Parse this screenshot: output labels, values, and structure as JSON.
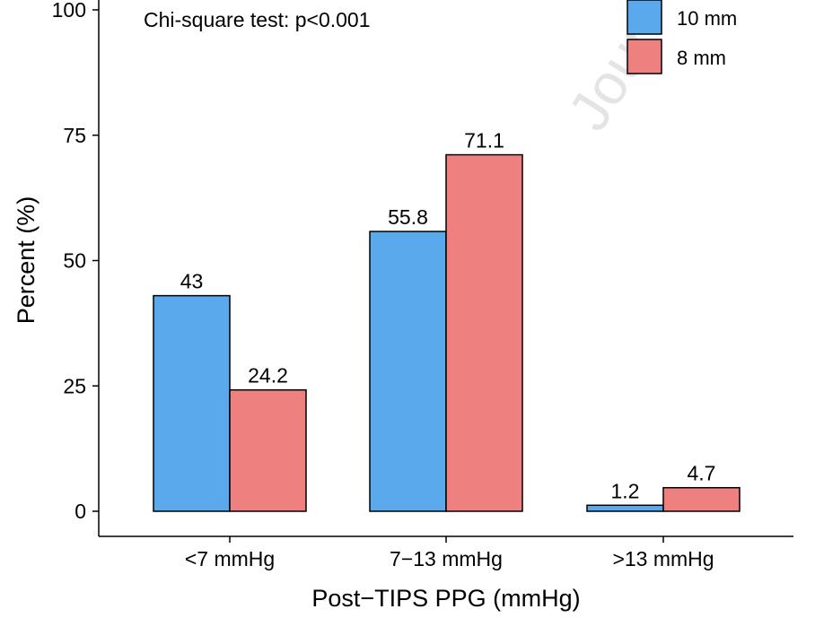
{
  "chart_data": {
    "type": "bar",
    "title": "",
    "annotation": "Chi-square test: p<0.001",
    "xlabel": "Post−TIPS PPG (mmHg)",
    "ylabel": "Percent (%)",
    "categories": [
      "<7 mmHg",
      "7−13 mmHg",
      ">13 mmHg"
    ],
    "series": [
      {
        "name": "10 mm",
        "color": "#5aa9ec",
        "values": [
          43,
          55.8,
          1.2
        ],
        "labels": [
          "43",
          "55.8",
          "1.2"
        ]
      },
      {
        "name": "8 mm",
        "color": "#ef8080",
        "values": [
          24.2,
          71.1,
          4.7
        ],
        "labels": [
          "24.2",
          "71.1",
          "4.7"
        ]
      }
    ],
    "ylim": [
      0,
      100
    ],
    "yticks": [
      0,
      25,
      50,
      75,
      100
    ],
    "grid": false,
    "legend_position": "top-right",
    "watermark": "Jour"
  }
}
